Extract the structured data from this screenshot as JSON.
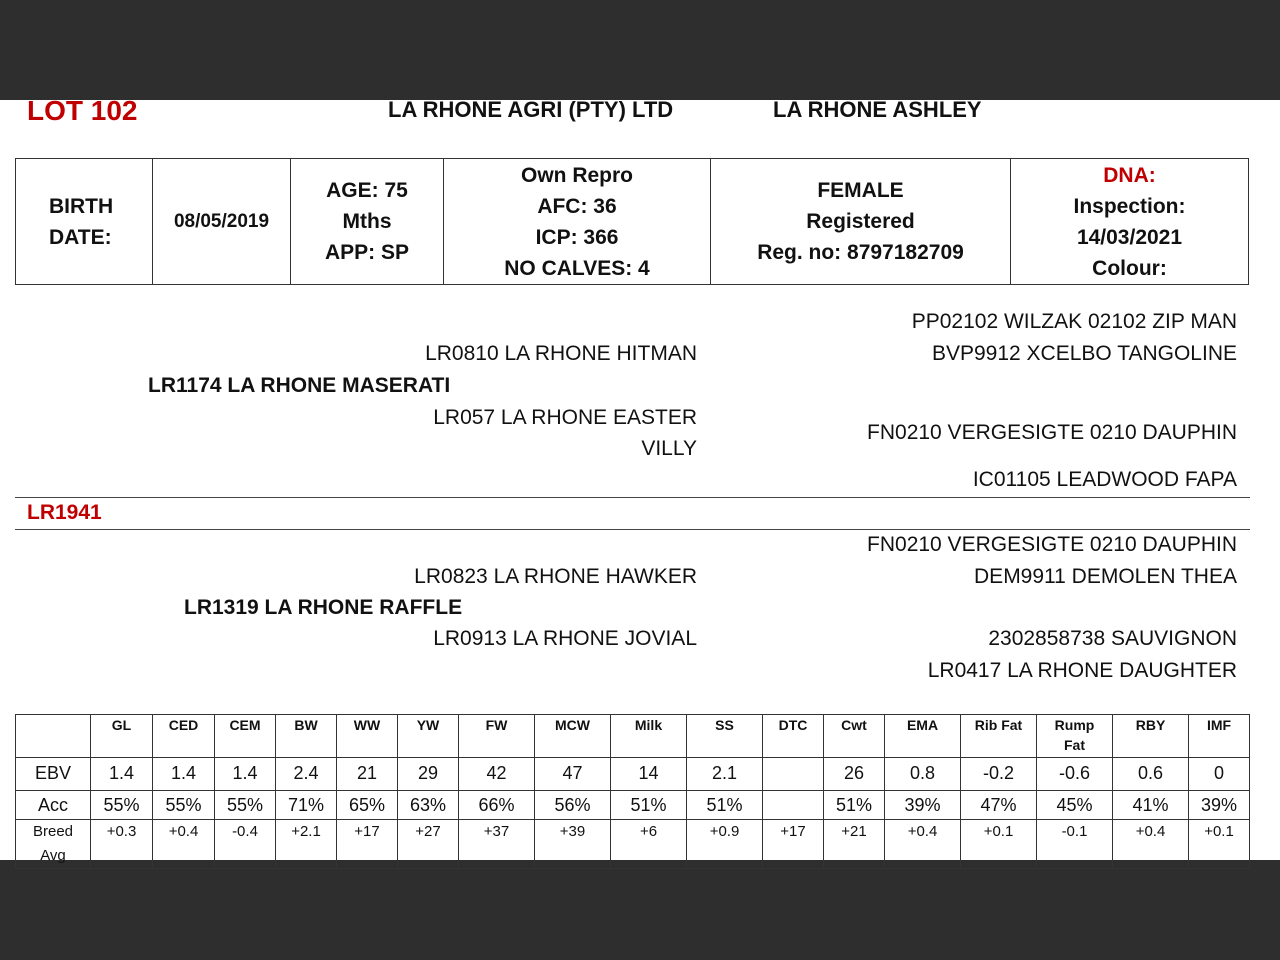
{
  "header": {
    "lot": "LOT 102",
    "breeder": "LA RHONE AGRI (PTY) LTD",
    "farm": "LA RHONE ASHLEY"
  },
  "info": {
    "birth_label": "BIRTH DATE:",
    "birth_date": "08/05/2019",
    "age": "AGE: 75",
    "age_unit": "Mths",
    "app": "APP: SP",
    "own_repro": "Own Repro",
    "afc": "AFC: 36",
    "icp": "ICP: 366",
    "calves": "NO CALVES: 4",
    "sex": "FEMALE",
    "status": "Registered",
    "reg": "Reg. no: 8797182709",
    "dna": "DNA:",
    "inspection": "Inspection:",
    "inspection_date": "14/03/2021",
    "colour": "Colour:"
  },
  "pedigree": {
    "sire": "LR1174 LA RHONE MASERATI",
    "sire_sire": "LR0810 LA RHONE HITMAN",
    "sire_dam": "LR057 LA RHONE EASTER",
    "sire_dam_2": "VILLY",
    "ss_s": "PP02102 WILZAK 02102 ZIP MAN",
    "ss_d": "BVP9912 XCELBO TANGOLINE",
    "sd_s": "FN0210 VERGESIGTE 0210 DAUPHIN",
    "sd_d": "IC01105 LEADWOOD FAPA",
    "animal_id": "LR1941",
    "dam": "LR1319 LA RHONE RAFFLE",
    "dam_sire": "LR0823 LA RHONE HAWKER",
    "dam_dam": "LR0913 LA RHONE JOVIAL",
    "ds_s": "FN0210 VERGESIGTE 0210 DAUPHIN",
    "ds_d": "DEM9911 DEMOLEN THEA",
    "dd_s": "2302858738 SAUVIGNON",
    "dd_d": "LR0417 LA RHONE DAUGHTER"
  },
  "ebv_table": {
    "columns": [
      "GL",
      "CED",
      "CEM",
      "BW",
      "WW",
      "YW",
      "FW",
      "MCW",
      "Milk",
      "SS",
      "DTC",
      "Cwt",
      "EMA",
      "Rib Fat",
      "Rump Fat",
      "RBY",
      "IMF"
    ],
    "rows": [
      {
        "label": "EBV",
        "values": [
          "1.4",
          "1.4",
          "1.4",
          "2.4",
          "21",
          "29",
          "42",
          "47",
          "14",
          "2.1",
          "",
          "26",
          "0.8",
          "-0.2",
          "-0.6",
          "0.6",
          "0"
        ]
      },
      {
        "label": "Acc",
        "values": [
          "55%",
          "55%",
          "55%",
          "71%",
          "65%",
          "63%",
          "66%",
          "56%",
          "51%",
          "51%",
          "",
          "51%",
          "39%",
          "47%",
          "45%",
          "41%",
          "39%"
        ]
      },
      {
        "label": "Breed Avg",
        "values": [
          "+0.3",
          "+0.4",
          "-0.4",
          "+2.1",
          "+17",
          "+27",
          "+37",
          "+39",
          "+6",
          "+0.9",
          "+17",
          "+21",
          "+0.4",
          "+0.1",
          "-0.1",
          "+0.4",
          "+0.1"
        ]
      }
    ]
  },
  "colors": {
    "accent": "#c00000",
    "background": "#2e2e2e"
  }
}
